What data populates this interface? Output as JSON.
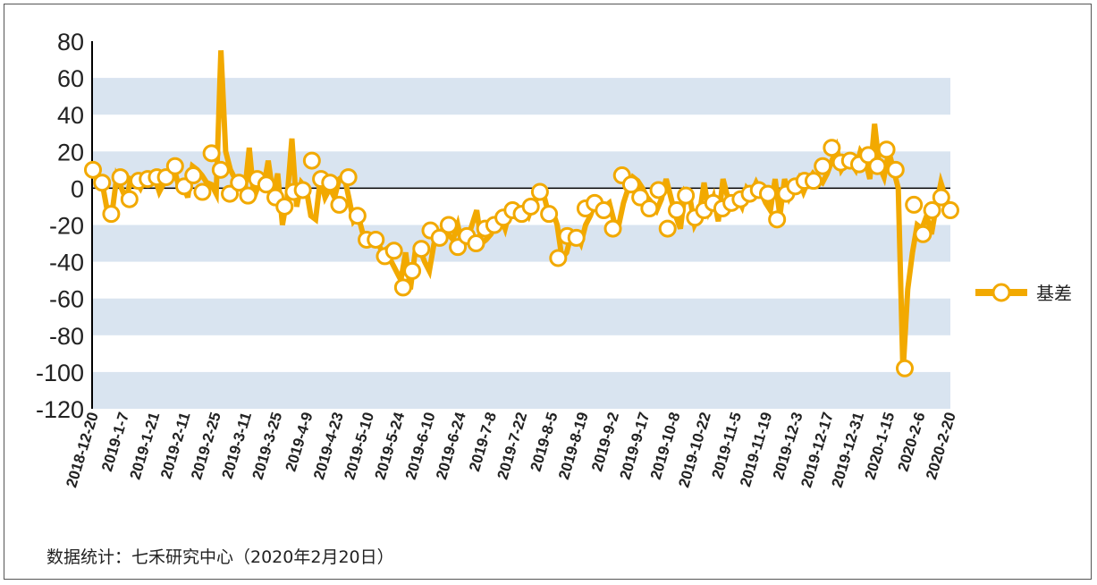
{
  "chart_data": {
    "type": "line",
    "title": "",
    "xlabel": "",
    "ylabel": "",
    "ylim": [
      -120,
      80
    ],
    "yticks": [
      80,
      60,
      40,
      20,
      0,
      -20,
      -40,
      -60,
      -80,
      -100,
      -120
    ],
    "grid": "alternating horizontal bands",
    "legend_position": "right",
    "colors": {
      "line": "#F2A900",
      "marker_fill": "#FFFFFF",
      "band": "#D9E4F0",
      "axis": "#000000"
    },
    "xtick_labels": [
      "2018-12-20",
      "2019-1-7",
      "2019-1-21",
      "2019-2-11",
      "2019-2-25",
      "2019-3-11",
      "2019-3-25",
      "2019-4-9",
      "2019-4-23",
      "2019-5-10",
      "2019-5-24",
      "2019-6-10",
      "2019-6-24",
      "2019-7-8",
      "2019-7-22",
      "2019-8-5",
      "2019-8-19",
      "2019-9-2",
      "2019-9-17",
      "2019-10-8",
      "2019-10-22",
      "2019-11-5",
      "2019-11-19",
      "2019-12-3",
      "2019-12-17",
      "2019-12-31",
      "2020-1-15",
      "2020-2-6",
      "2020-2-20"
    ],
    "series": [
      {
        "name": "基差",
        "line_values": [
          10,
          3,
          2,
          -12,
          -14,
          6,
          0,
          -6,
          5,
          4,
          0,
          6,
          5,
          6,
          -2,
          3,
          5,
          12,
          2,
          2,
          -5,
          12,
          10,
          7,
          3,
          2,
          -3,
          75,
          20,
          10,
          5,
          2,
          -3,
          22,
          -5,
          2,
          0,
          15,
          -3,
          8,
          -20,
          -5,
          27,
          -10,
          3,
          0,
          -15,
          -17,
          5,
          -5,
          0,
          -5,
          5,
          7,
          -5,
          -18,
          -15,
          -25,
          -27,
          -30,
          -28,
          -35,
          -33,
          -40,
          -45,
          -50,
          -35,
          -55,
          -35,
          -33,
          -40,
          -45,
          -30,
          -25,
          -22,
          -25,
          -28,
          -20,
          -32,
          -28,
          -20,
          -12,
          -30,
          -28,
          -25,
          -20,
          -15,
          -22,
          -12,
          -15,
          -12,
          -10,
          -15,
          -8,
          -5,
          -2,
          -12,
          -12,
          -20,
          -38,
          -35,
          -25,
          -25,
          -30,
          -20,
          -15,
          -8,
          -12,
          -10,
          -8,
          -18,
          -20,
          -8,
          0,
          6,
          4,
          0,
          -5,
          -8,
          -12,
          -6,
          5,
          -5,
          -15,
          -22,
          -2,
          -5,
          -20,
          -15,
          3,
          -12,
          -5,
          -18,
          5,
          -5,
          -8,
          -5,
          -10,
          0,
          -3,
          3,
          -2,
          -8,
          -12,
          5,
          -15,
          5,
          -5,
          0,
          5,
          -2,
          4,
          8,
          5,
          3,
          8,
          15,
          22,
          10,
          14,
          14,
          10,
          20,
          16,
          5,
          35,
          12,
          6,
          20,
          10,
          0,
          -100,
          -55,
          -35,
          -20,
          -22,
          -15,
          -25,
          -10,
          3,
          -5,
          -12
        ],
        "markers": [
          [
            "2018-12-20",
            10
          ],
          [
            "",
            3
          ],
          [
            "",
            -14
          ],
          [
            "",
            6
          ],
          [
            "",
            -6
          ],
          [
            "",
            4
          ],
          [
            "",
            5
          ],
          [
            "",
            6
          ],
          [
            "",
            6
          ],
          [
            "",
            12
          ],
          [
            "",
            1
          ],
          [
            "",
            7
          ],
          [
            "",
            -2
          ],
          [
            "",
            19
          ],
          [
            "",
            10
          ],
          [
            "",
            -3
          ],
          [
            "",
            3
          ],
          [
            "",
            -4
          ],
          [
            "",
            5
          ],
          [
            "",
            2
          ],
          [
            "",
            -5
          ],
          [
            "",
            -10
          ],
          [
            "",
            -2
          ],
          [
            "",
            -1
          ],
          [
            "",
            15
          ],
          [
            "",
            5
          ],
          [
            "",
            3
          ],
          [
            "",
            -9
          ],
          [
            "",
            6
          ],
          [
            "",
            -15
          ],
          [
            "",
            -28
          ],
          [
            "",
            -28
          ],
          [
            "",
            -37
          ],
          [
            "",
            -34
          ],
          [
            "",
            -54
          ],
          [
            "",
            -45
          ],
          [
            "",
            -33
          ],
          [
            "",
            -23
          ],
          [
            "",
            -27
          ],
          [
            "",
            -20
          ],
          [
            "",
            -32
          ],
          [
            "",
            -26
          ],
          [
            "",
            -30
          ],
          [
            "",
            -22
          ],
          [
            "",
            -20
          ],
          [
            "",
            -16
          ],
          [
            "",
            -12
          ],
          [
            "",
            -14
          ],
          [
            "",
            -10
          ],
          [
            "",
            -2
          ],
          [
            "",
            -14
          ],
          [
            "",
            -38
          ],
          [
            "",
            -26
          ],
          [
            "",
            -27
          ],
          [
            "",
            -11
          ],
          [
            "",
            -8
          ],
          [
            "",
            -12
          ],
          [
            "",
            -22
          ],
          [
            "",
            7
          ],
          [
            "",
            2
          ],
          [
            "",
            -5
          ],
          [
            "",
            -11
          ],
          [
            "",
            -1
          ],
          [
            "",
            -22
          ],
          [
            "",
            -12
          ],
          [
            "",
            -4
          ],
          [
            "",
            -16
          ],
          [
            "",
            -12
          ],
          [
            "",
            -8
          ],
          [
            "",
            -11
          ],
          [
            "",
            -8
          ],
          [
            "",
            -6
          ],
          [
            "",
            -3
          ],
          [
            "",
            -1
          ],
          [
            "",
            -3
          ],
          [
            "",
            -17
          ],
          [
            "",
            -3
          ],
          [
            "",
            1
          ],
          [
            "",
            4
          ],
          [
            "",
            4
          ],
          [
            "",
            12
          ],
          [
            "",
            22
          ],
          [
            "",
            14
          ],
          [
            "",
            15
          ],
          [
            "",
            13
          ],
          [
            "",
            18
          ],
          [
            "",
            12
          ],
          [
            "",
            21
          ],
          [
            "",
            10
          ],
          [
            "",
            -98
          ],
          [
            "",
            -9
          ],
          [
            "",
            -25
          ],
          [
            "",
            -12
          ],
          [
            "",
            -5
          ],
          [
            "2020-2-20",
            -12
          ]
        ]
      }
    ]
  },
  "legend": {
    "label": "基差"
  },
  "source_note": "数据统计：七禾研究中心（2020年2月20日）"
}
